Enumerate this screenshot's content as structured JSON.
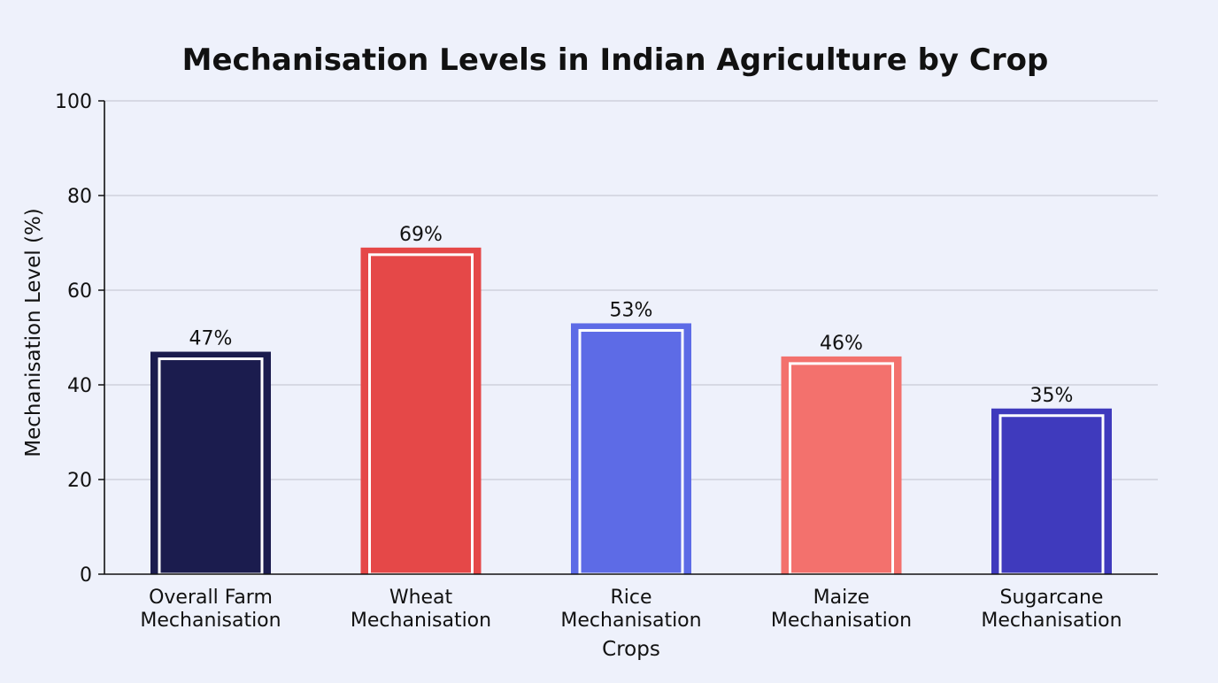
{
  "chart_data": {
    "type": "bar",
    "title": "Mechanisation Levels in Indian Agriculture by Crop",
    "xlabel": "Crops",
    "ylabel": "Mechanisation Level (%)",
    "ylim": [
      0,
      100
    ],
    "yticks": [
      0,
      20,
      40,
      60,
      80,
      100
    ],
    "grid": true,
    "categories": [
      [
        "Overall Farm",
        "Mechanisation"
      ],
      [
        "Wheat",
        "Mechanisation"
      ],
      [
        "Rice",
        "Mechanisation"
      ],
      [
        "Maize",
        "Mechanisation"
      ],
      [
        "Sugarcane",
        "Mechanisation"
      ]
    ],
    "values": [
      47,
      69,
      53,
      46,
      35
    ],
    "data_labels": [
      "47%",
      "69%",
      "53%",
      "46%",
      "35%"
    ],
    "colors": [
      "#1b1c4e",
      "#e54848",
      "#5d6be6",
      "#f3716d",
      "#3f3abd"
    ],
    "grid_color": "#c9cbd6",
    "inner_outline_color": "#ffffff"
  }
}
